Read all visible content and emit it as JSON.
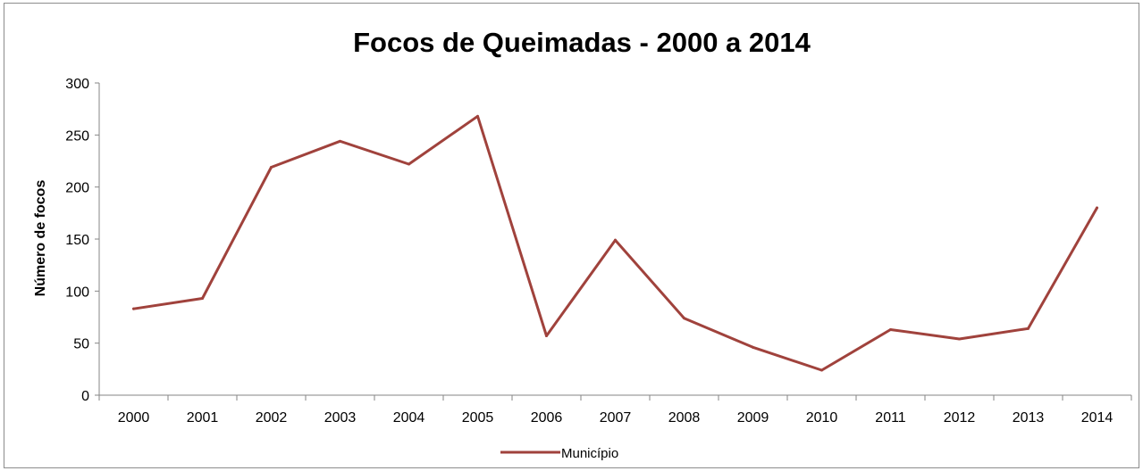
{
  "chart_data": {
    "type": "line",
    "title": "Focos de Queimadas - 2000 a 2014",
    "xlabel": "",
    "ylabel": "Número de  focos",
    "categories": [
      "2000",
      "2001",
      "2002",
      "2003",
      "2004",
      "2005",
      "2006",
      "2007",
      "2008",
      "2009",
      "2010",
      "2011",
      "2012",
      "2013",
      "2014"
    ],
    "series": [
      {
        "name": "Município",
        "values": [
          83,
          93,
          219,
          244,
          222,
          268,
          57,
          149,
          74,
          46,
          24,
          63,
          54,
          64,
          180
        ],
        "color": "#a0423c"
      }
    ],
    "ylim": [
      0,
      300
    ],
    "yticks": [
      "0",
      "50",
      "100",
      "150",
      "200",
      "250",
      "300"
    ],
    "grid": false,
    "legend_position": "bottom"
  }
}
